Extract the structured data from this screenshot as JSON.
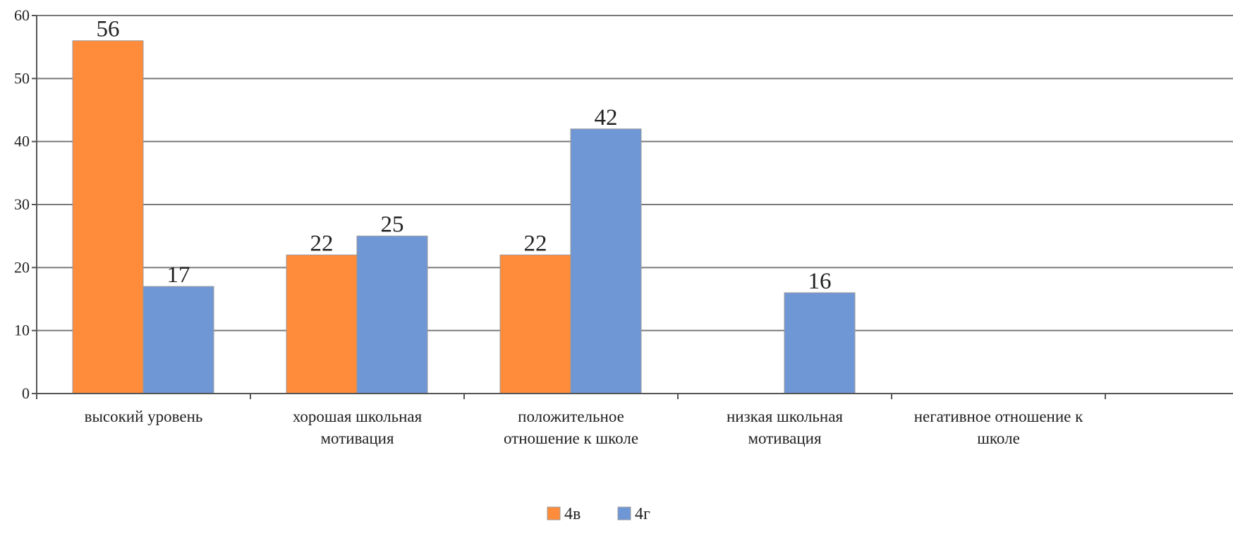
{
  "chart_data": {
    "type": "bar",
    "title": "",
    "xlabel": "",
    "ylabel": "",
    "categories": [
      [
        "высокий уровень"
      ],
      [
        "хорошая школьная",
        "мотивация"
      ],
      [
        "положительное",
        "отношение к школе"
      ],
      [
        "низкая школьная",
        "мотивация"
      ],
      [
        "негативное отношение к",
        "школе"
      ]
    ],
    "series": [
      {
        "name": "4в",
        "color": "#FF8C3A",
        "values": [
          56,
          22,
          22,
          0,
          0
        ]
      },
      {
        "name": "4г",
        "color": "#6F97D6",
        "values": [
          17,
          25,
          42,
          16,
          0
        ]
      }
    ],
    "ylim": [
      0,
      60
    ],
    "yticks": [
      0,
      10,
      20,
      30,
      40,
      50,
      60
    ],
    "grid": true,
    "legend_position": "bottom",
    "data_labels_shown": [
      [
        true,
        true,
        true,
        false,
        false
      ],
      [
        true,
        true,
        true,
        true,
        false
      ]
    ]
  }
}
